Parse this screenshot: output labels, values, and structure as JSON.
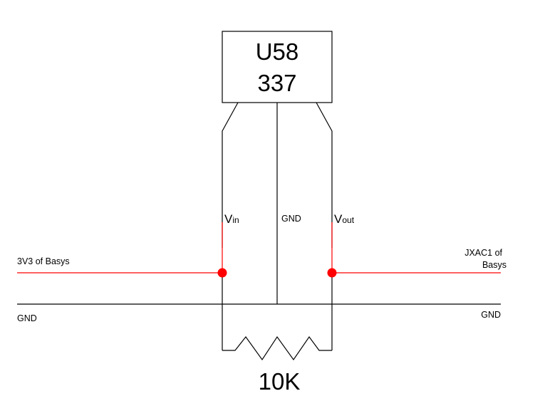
{
  "chip": {
    "line1": "U58",
    "line2": "337"
  },
  "pins": {
    "vin": {
      "main": "V",
      "sub": "in"
    },
    "gnd": "GND",
    "vout": {
      "main": "V",
      "sub": "out"
    }
  },
  "nets": {
    "left_supply": "3V3 of Basys",
    "right_signal_line1": "JXAC1 of",
    "right_signal_line2": "Basys",
    "gnd_left": "GND",
    "gnd_right": "GND"
  },
  "resistor": {
    "value": "10K"
  },
  "colors": {
    "wire": "#000000",
    "signal": "#ff0000"
  }
}
